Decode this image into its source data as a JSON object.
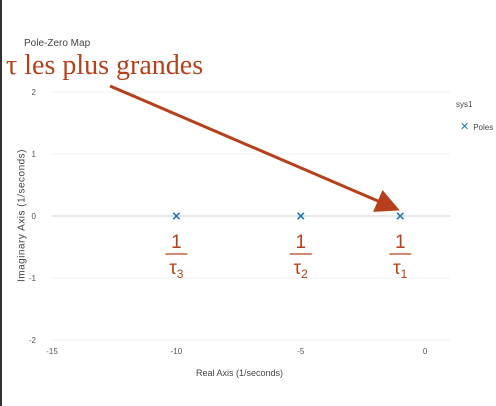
{
  "chart_data": {
    "type": "scatter",
    "title": "Pole-Zero Map",
    "xlabel": "Real Axis (1/seconds)",
    "ylabel": "Imaginary Axis (1/seconds)",
    "xlim": [
      -15,
      1
    ],
    "ylim": [
      -2,
      2
    ],
    "x_ticks": [
      -15,
      -10,
      -5,
      0
    ],
    "y_ticks": [
      -2,
      -1,
      0,
      1,
      2
    ],
    "grid": true,
    "legend": {
      "title": "sys1",
      "placement": "top-right",
      "items": [
        {
          "name": "Poles",
          "marker": "x"
        }
      ]
    },
    "series": [
      {
        "name": "Poles",
        "marker": "x",
        "color": "#1f77b4",
        "points": [
          {
            "x": -10,
            "y": 0
          },
          {
            "x": -5,
            "y": 0
          },
          {
            "x": -1,
            "y": 0
          }
        ]
      }
    ],
    "annotations": {
      "headline": "τ les plus grandes",
      "headline_color": "#b5401b",
      "arrow_target": {
        "x": -1,
        "y": 0
      },
      "pole_labels": [
        {
          "x": -10,
          "numerator": "1",
          "denominator": "τ",
          "subscript": "3"
        },
        {
          "x": -5,
          "numerator": "1",
          "denominator": "τ",
          "subscript": "2"
        },
        {
          "x": -1,
          "numerator": "1",
          "denominator": "τ",
          "subscript": "1"
        }
      ]
    }
  }
}
